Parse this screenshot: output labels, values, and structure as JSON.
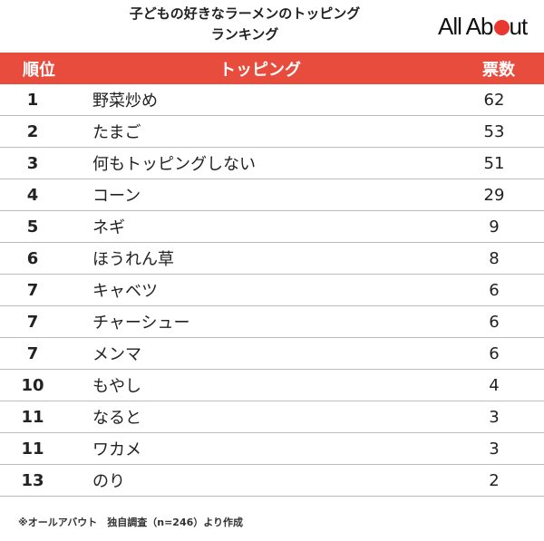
{
  "header": {
    "title_line1": "子どもの好きなラーメンのトッピング",
    "title_line2": "ランキング",
    "logo_left": "All Ab",
    "logo_right": "ut",
    "accent_color": "#e84c3d"
  },
  "chart_data": {
    "type": "table",
    "title": "子どもの好きなラーメンのトッピングランキング",
    "columns": [
      "順位",
      "トッピング",
      "票数"
    ],
    "rows": [
      {
        "rank": "1",
        "topping": "野菜炒め",
        "votes": "62"
      },
      {
        "rank": "2",
        "topping": "たまご",
        "votes": "53"
      },
      {
        "rank": "3",
        "topping": "何もトッピングしない",
        "votes": "51"
      },
      {
        "rank": "4",
        "topping": "コーン",
        "votes": "29"
      },
      {
        "rank": "5",
        "topping": "ネギ",
        "votes": "9"
      },
      {
        "rank": "6",
        "topping": "ほうれん草",
        "votes": "8"
      },
      {
        "rank": "7",
        "topping": "キャベツ",
        "votes": "6"
      },
      {
        "rank": "7",
        "topping": "チャーシュー",
        "votes": "6"
      },
      {
        "rank": "7",
        "topping": "メンマ",
        "votes": "6"
      },
      {
        "rank": "10",
        "topping": "もやし",
        "votes": "4"
      },
      {
        "rank": "11",
        "topping": "なると",
        "votes": "3"
      },
      {
        "rank": "11",
        "topping": "ワカメ",
        "votes": "3"
      },
      {
        "rank": "13",
        "topping": "のり",
        "votes": "2"
      }
    ]
  },
  "footnote": "※オールアバウト　独自調査（n=246）より作成"
}
